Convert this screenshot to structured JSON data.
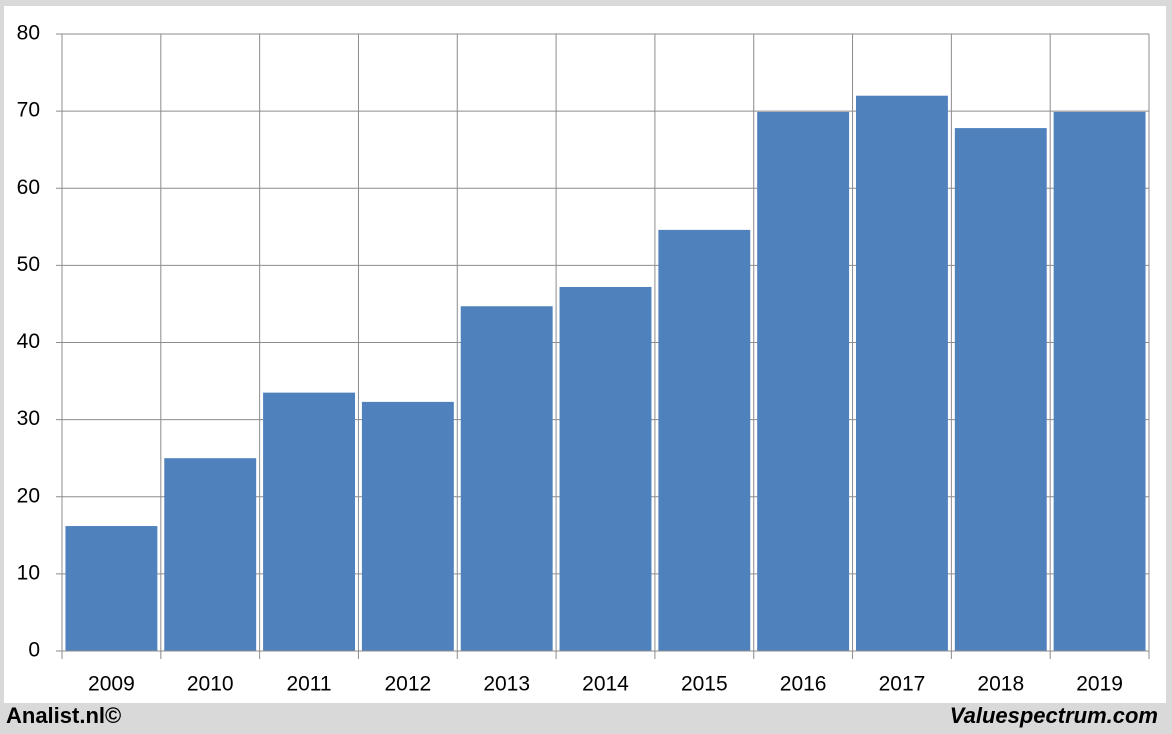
{
  "chart_data": {
    "type": "bar",
    "categories": [
      "2009",
      "2010",
      "2011",
      "2012",
      "2013",
      "2014",
      "2015",
      "2016",
      "2017",
      "2018",
      "2019"
    ],
    "values": [
      16.2,
      25.0,
      33.5,
      32.3,
      44.7,
      47.2,
      54.6,
      69.9,
      72.0,
      67.8,
      69.9
    ],
    "color": "#4f81bd",
    "ylim": [
      0,
      80
    ],
    "yticks": [
      0,
      10,
      20,
      30,
      40,
      50,
      60,
      70,
      80
    ],
    "grid": true,
    "annotations": [
      "Analist.nl©",
      "Valuespectrum.com"
    ]
  }
}
